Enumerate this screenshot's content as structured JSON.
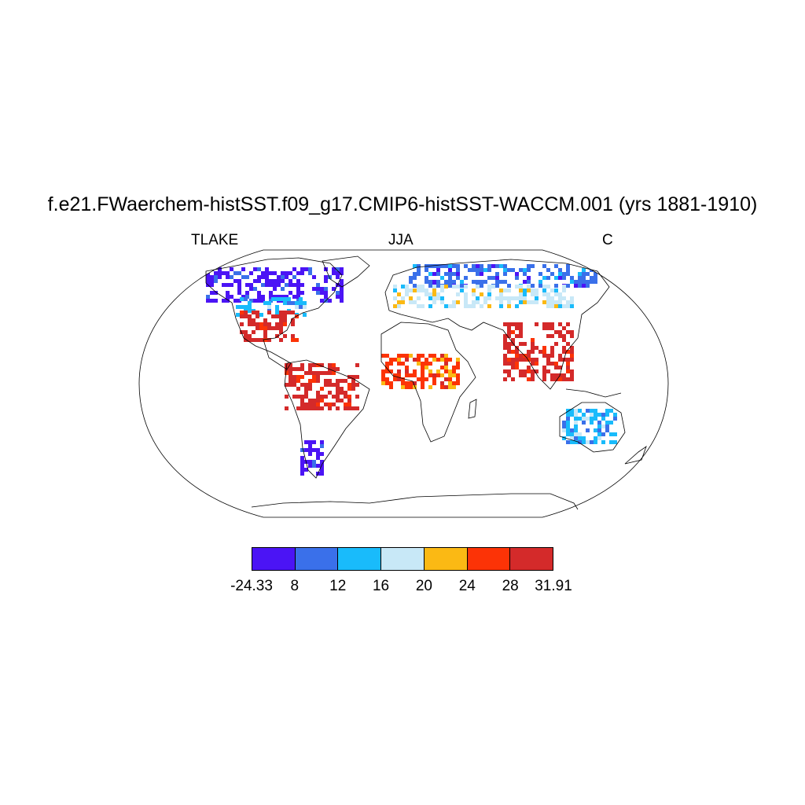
{
  "title": "f.e21.FWaerchem-histSST.f09_g17.CMIP6-histSST-WACCM.001 (yrs 1881-1910)",
  "subtitle_left": "TLAKE",
  "subtitle_center": "JJA",
  "subtitle_right": "C",
  "colorbar": {
    "colors": [
      "#4b14f5",
      "#3a70ea",
      "#19bbfb",
      "#c8e8f7",
      "#fbb914",
      "#fc3306",
      "#d42a2a"
    ],
    "labels": [
      "-24.33",
      "8",
      "12",
      "16",
      "20",
      "24",
      "28",
      "31.91"
    ]
  },
  "map": {
    "projection": "robinson",
    "field_description_regions": [
      {
        "region": "canada_arctic",
        "color_index": 0
      },
      {
        "region": "northern_us",
        "color_index": 2
      },
      {
        "region": "eastern_us",
        "color_index": 6
      },
      {
        "region": "amazon",
        "color_index": 6
      },
      {
        "region": "siberia",
        "color_index": 1
      },
      {
        "region": "europe",
        "color_index": 3
      },
      {
        "region": "sahel",
        "color_index": 5
      },
      {
        "region": "india",
        "color_index": 6
      },
      {
        "region": "patagonia",
        "color_index": 0
      },
      {
        "region": "australia",
        "color_index": 2
      }
    ]
  }
}
